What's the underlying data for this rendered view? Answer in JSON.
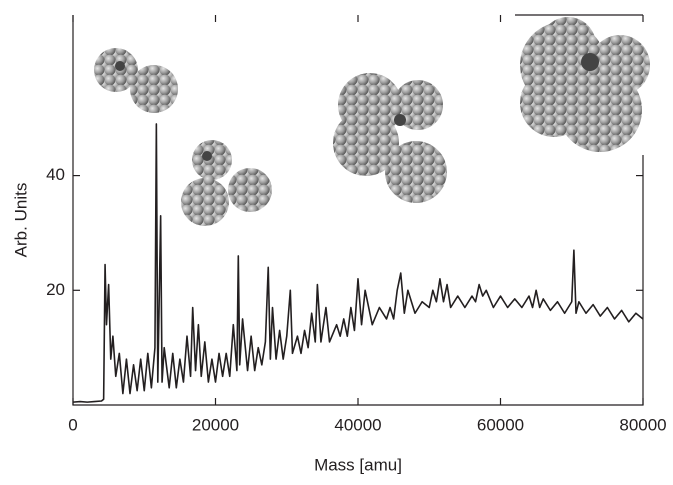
{
  "chart_data": {
    "type": "line",
    "xlabel": "Mass [amu]",
    "ylabel": "Arb. Units",
    "xlim": [
      0,
      80000
    ],
    "ylim": [
      0,
      68
    ],
    "xticks": [
      0,
      20000,
      40000,
      60000,
      80000
    ],
    "yticks": [
      20,
      40
    ],
    "x": [
      0,
      1000,
      2000,
      3000,
      4000,
      4300,
      4500,
      4700,
      5000,
      5300,
      5600,
      6000,
      6500,
      7000,
      7500,
      8000,
      8500,
      9000,
      9500,
      10000,
      10500,
      11000,
      11500,
      11700,
      11900,
      12300,
      12500,
      12800,
      13500,
      14000,
      14500,
      15000,
      15500,
      16000,
      16500,
      16800,
      17200,
      17600,
      18000,
      18500,
      19000,
      19500,
      20000,
      20500,
      21000,
      21500,
      22000,
      22500,
      23000,
      23200,
      23400,
      23800,
      24500,
      25000,
      25500,
      26000,
      26500,
      27000,
      27400,
      27700,
      28000,
      28500,
      29000,
      29500,
      30000,
      30500,
      30800,
      31500,
      32000,
      32500,
      33000,
      33500,
      34000,
      34300,
      34800,
      35500,
      36000,
      37000,
      37500,
      38000,
      38500,
      39000,
      39500,
      40000,
      40500,
      41000,
      42000,
      43000,
      44000,
      44500,
      45000,
      45500,
      46000,
      46500,
      47000,
      48000,
      49000,
      50000,
      50500,
      51000,
      51500,
      52000,
      52500,
      53000,
      54000,
      55000,
      56000,
      56500,
      57000,
      57500,
      58000,
      59000,
      60000,
      61000,
      62000,
      63000,
      64000,
      64500,
      65000,
      65500,
      66000,
      67000,
      68000,
      69000,
      70000,
      70300,
      70600,
      71000,
      72000,
      73000,
      74000,
      75000,
      76000,
      77000,
      78000,
      79000,
      80000
    ],
    "series": [
      {
        "color": "#231f20",
        "values": [
          0.5,
          0.6,
          0.5,
          0.6,
          0.7,
          1,
          24.5,
          14,
          21,
          8,
          12,
          5,
          9,
          2,
          8,
          2,
          7,
          2.5,
          8,
          2.5,
          9,
          3,
          10,
          49,
          4,
          33,
          4,
          10,
          3,
          9,
          3,
          8,
          4,
          12,
          5,
          17,
          6,
          14,
          5,
          11,
          4,
          8,
          4,
          9,
          5,
          9,
          5,
          14,
          6,
          26,
          7,
          15,
          6,
          12,
          6,
          10,
          7,
          11,
          24,
          8,
          17,
          8,
          13,
          8,
          12,
          20,
          9,
          12,
          9,
          13,
          10,
          16,
          11,
          21,
          11,
          17,
          11,
          14,
          12,
          15,
          12,
          17,
          13,
          22,
          14,
          20,
          14,
          17,
          15,
          17,
          15,
          20,
          23,
          16,
          20,
          16,
          18,
          17,
          20,
          18,
          22,
          18,
          21,
          17,
          19,
          17,
          19,
          18,
          21,
          19,
          20,
          17,
          19,
          17,
          18.5,
          17,
          19,
          17,
          20,
          17,
          18.5,
          16.5,
          18,
          16,
          18,
          27,
          16,
          18,
          16,
          17.5,
          15.5,
          17,
          15,
          16.5,
          14.5,
          16,
          15
        ]
      }
    ]
  }
}
